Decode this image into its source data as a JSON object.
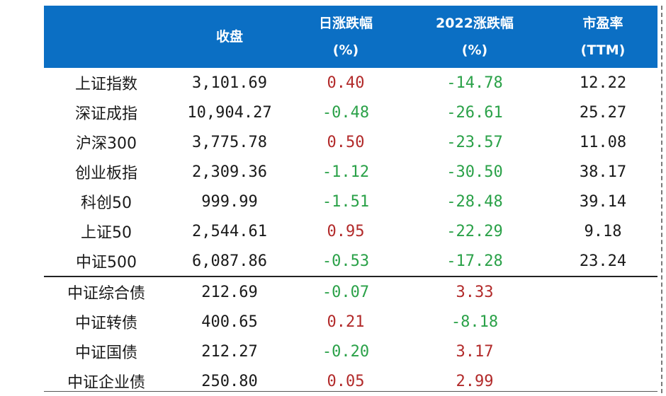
{
  "header": {
    "col1": "收盘",
    "col2_l1": "日涨跌幅",
    "col2_l2": "(%)",
    "col3_l1": "2022涨跌幅",
    "col3_l2": "(%)",
    "col4_l1": "市盈率",
    "col4_l2": "(TTM)"
  },
  "colors": {
    "header_bg": "#0b6fc4",
    "up": "#b22a2a",
    "down": "#2aa148"
  },
  "rows": [
    {
      "name": "上证指数",
      "close": "3,101.69",
      "daily": "0.40",
      "ytd": "-14.78",
      "pe": "12.22"
    },
    {
      "name": "深证成指",
      "close": "10,904.27",
      "daily": "-0.48",
      "ytd": "-26.61",
      "pe": "25.27"
    },
    {
      "name": "沪深300",
      "close": "3,775.78",
      "daily": "0.50",
      "ytd": "-23.57",
      "pe": "11.08"
    },
    {
      "name": "创业板指",
      "close": "2,309.36",
      "daily": "-1.12",
      "ytd": "-30.50",
      "pe": "38.17"
    },
    {
      "name": "科创50",
      "close": "999.99",
      "daily": "-1.51",
      "ytd": "-28.48",
      "pe": "39.14"
    },
    {
      "name": "上证50",
      "close": "2,544.61",
      "daily": "0.95",
      "ytd": "-22.29",
      "pe": "9.18"
    },
    {
      "name": "中证500",
      "close": "6,087.86",
      "daily": "-0.53",
      "ytd": "-17.28",
      "pe": "23.24"
    },
    {
      "name": "中证综合债",
      "close": "212.69",
      "daily": "-0.07",
      "ytd": "3.33",
      "pe": ""
    },
    {
      "name": "中证转债",
      "close": "400.65",
      "daily": "0.21",
      "ytd": "-8.18",
      "pe": ""
    },
    {
      "name": "中证国债",
      "close": "212.27",
      "daily": "-0.20",
      "ytd": "3.17",
      "pe": ""
    },
    {
      "name": "中证企业债",
      "close": "250.80",
      "daily": "0.05",
      "ytd": "2.99",
      "pe": ""
    }
  ]
}
